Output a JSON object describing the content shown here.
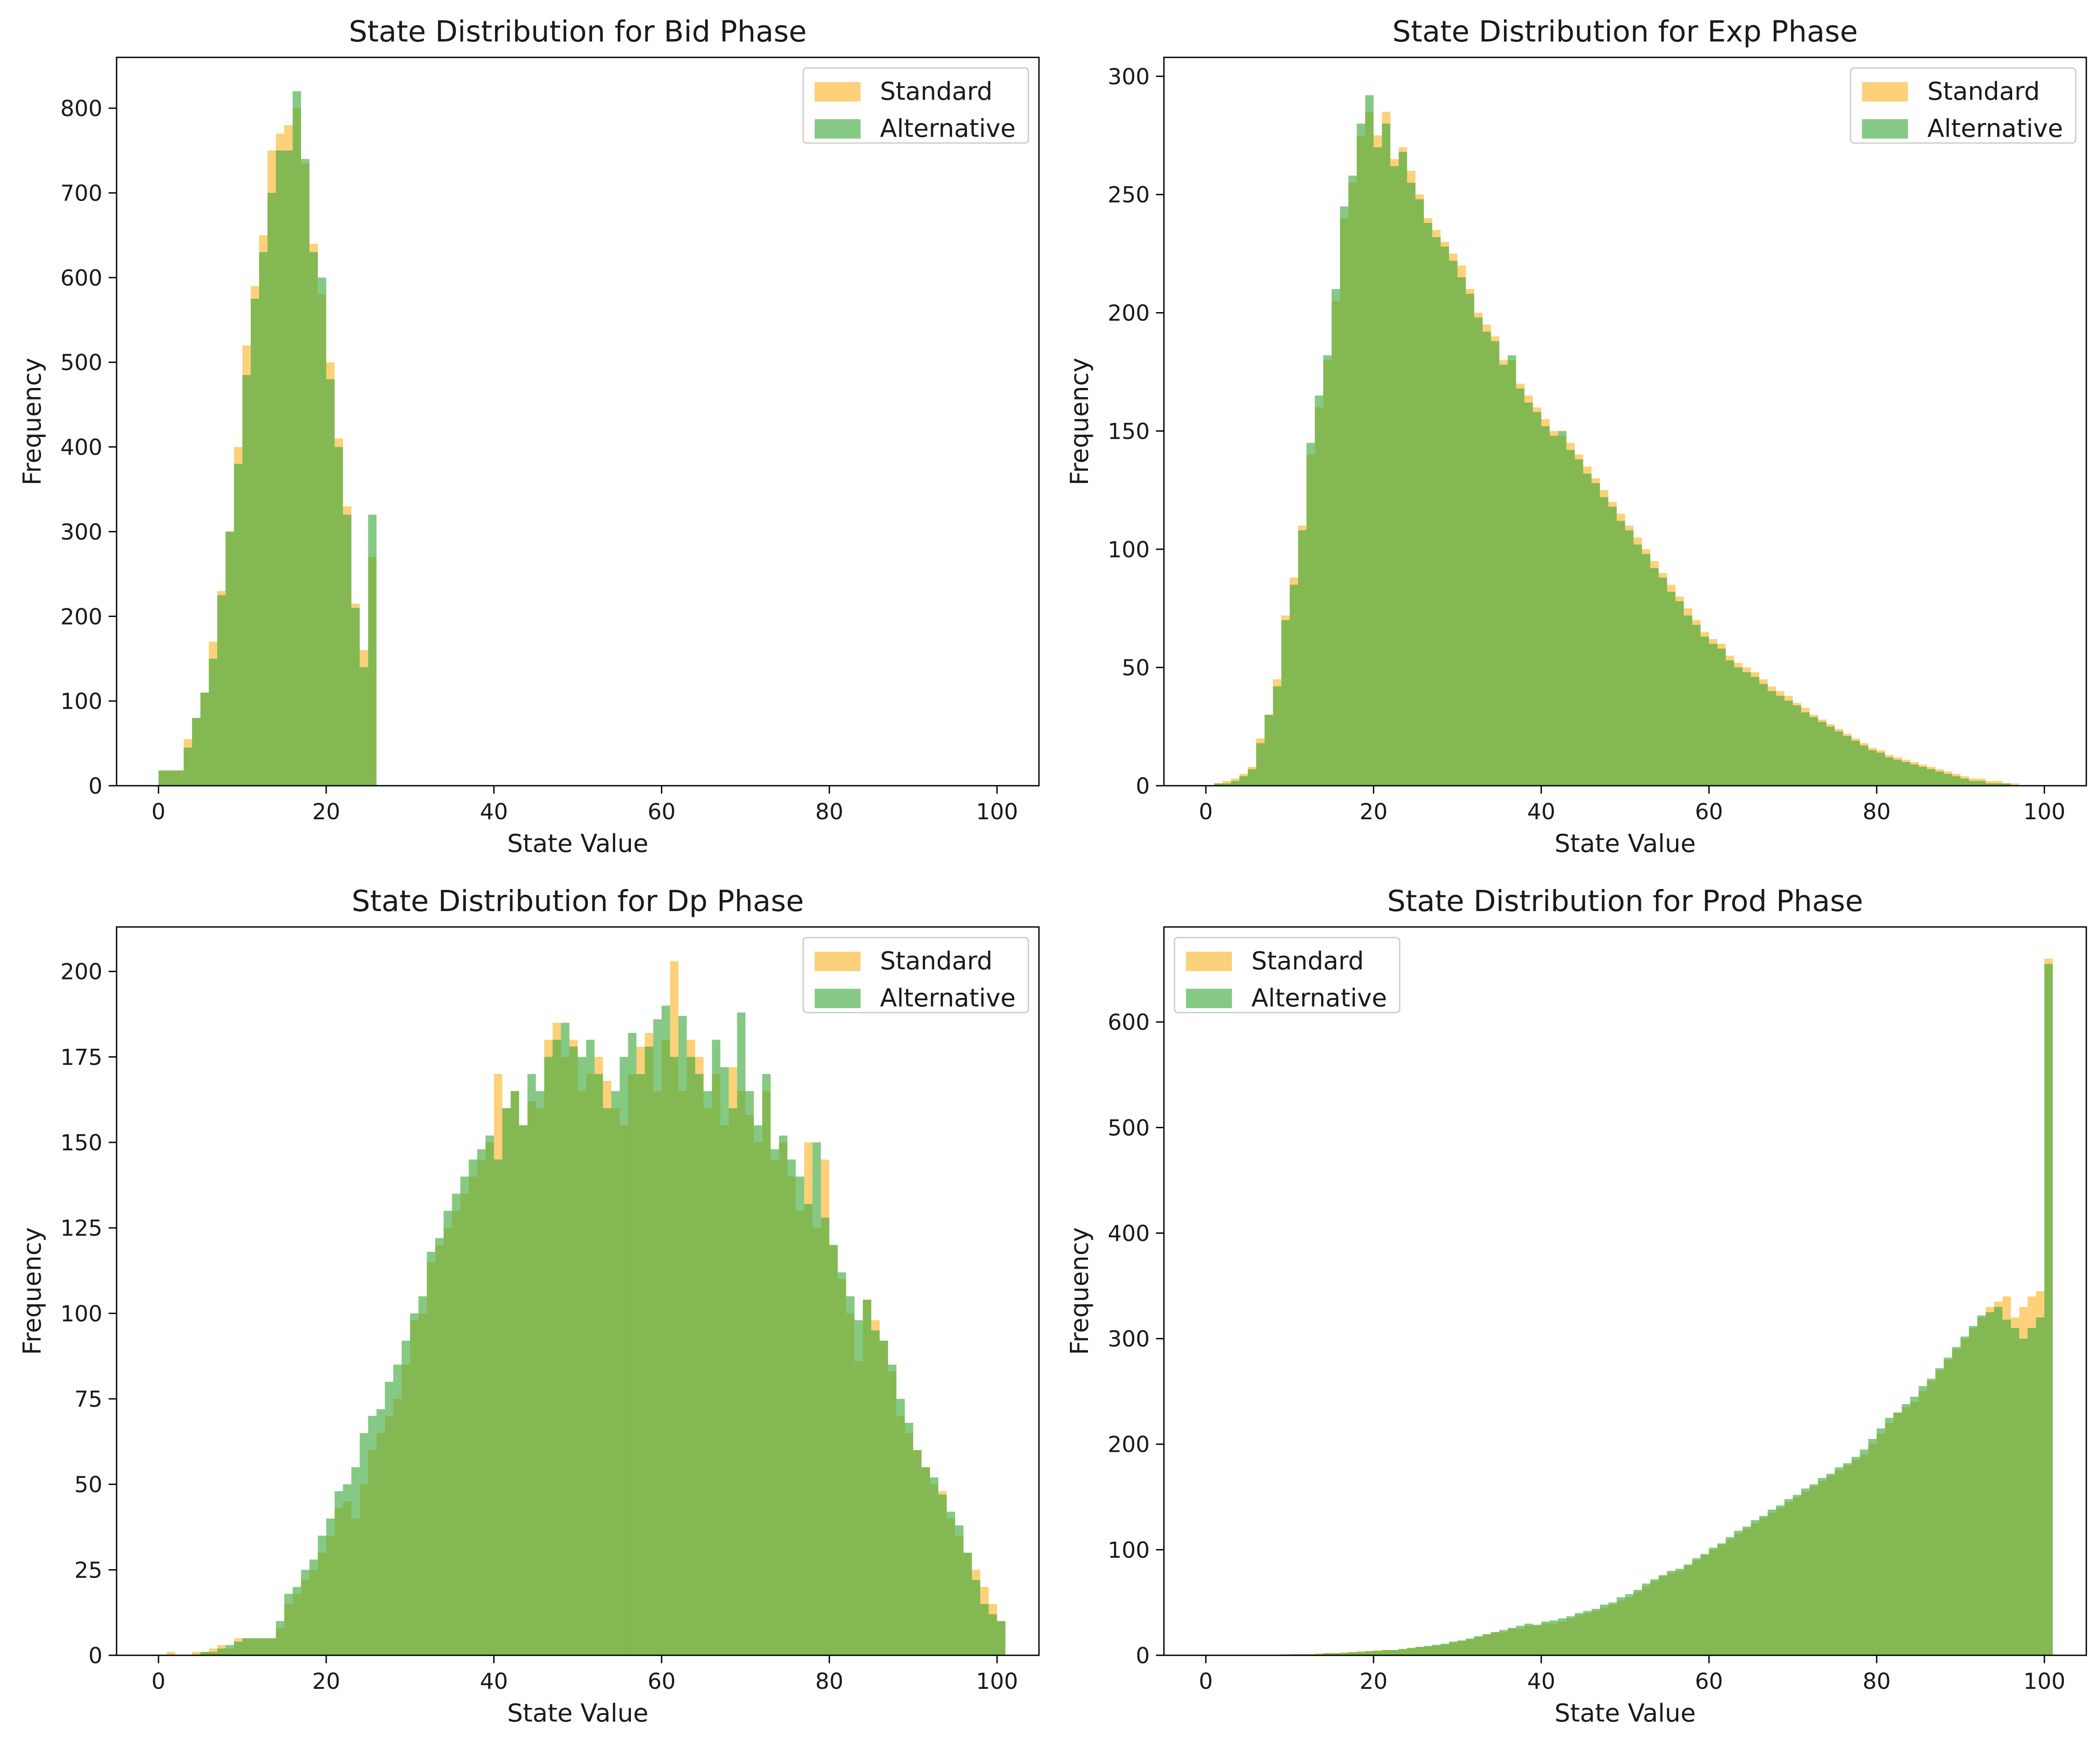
{
  "colors": {
    "standard": "#fbbf45",
    "alternative": "#3aa83a"
  },
  "chart_data": [
    {
      "type": "histogram",
      "title": "State Distribution for Bid Phase",
      "xlabel": "State Value",
      "ylabel": "Frequency",
      "xlim": [
        -5,
        105
      ],
      "ylim": [
        0,
        860
      ],
      "xticks": [
        0,
        20,
        40,
        60,
        80,
        100
      ],
      "yticks": [
        0,
        100,
        200,
        300,
        400,
        500,
        600,
        700,
        800
      ],
      "legend": {
        "position": "top-right"
      },
      "bin_start": 0,
      "bin_width": 1,
      "series": [
        {
          "name": "Standard",
          "color": "#fbbf45",
          "values": [
            18,
            18,
            18,
            55,
            80,
            110,
            170,
            230,
            300,
            400,
            520,
            590,
            650,
            750,
            770,
            780,
            800,
            735,
            640,
            580,
            500,
            410,
            330,
            215,
            160,
            270
          ]
        },
        {
          "name": "Alternative",
          "color": "#3aa83a",
          "values": [
            18,
            18,
            18,
            45,
            80,
            110,
            150,
            225,
            300,
            380,
            485,
            575,
            630,
            700,
            750,
            750,
            820,
            740,
            630,
            600,
            480,
            400,
            320,
            210,
            140,
            320
          ]
        }
      ]
    },
    {
      "type": "histogram",
      "title": "State Distribution for Exp Phase",
      "xlabel": "State Value",
      "ylabel": "Frequency",
      "xlim": [
        -5,
        105
      ],
      "ylim": [
        0,
        308
      ],
      "xticks": [
        0,
        20,
        40,
        60,
        80,
        100
      ],
      "yticks": [
        0,
        50,
        100,
        150,
        200,
        250,
        300
      ],
      "legend": {
        "position": "top-right"
      },
      "bin_start": 0,
      "bin_width": 1,
      "series": [
        {
          "name": "Standard",
          "color": "#fbbf45",
          "values": [
            0,
            1,
            2,
            3,
            5,
            8,
            20,
            30,
            45,
            72,
            88,
            110,
            140,
            160,
            180,
            205,
            240,
            255,
            275,
            285,
            275,
            285,
            265,
            270,
            260,
            250,
            240,
            235,
            230,
            225,
            220,
            210,
            200,
            195,
            190,
            180,
            180,
            170,
            165,
            160,
            155,
            150,
            148,
            145,
            140,
            135,
            130,
            125,
            120,
            115,
            110,
            105,
            100,
            95,
            90,
            85,
            80,
            75,
            70,
            65,
            62,
            60,
            55,
            52,
            50,
            48,
            45,
            42,
            40,
            38,
            35,
            33,
            30,
            28,
            26,
            24,
            22,
            20,
            18,
            16,
            15,
            13,
            12,
            11,
            10,
            9,
            8,
            7,
            6,
            5,
            4,
            3,
            3,
            2,
            2,
            1,
            1,
            0,
            0,
            0
          ]
        },
        {
          "name": "Alternative",
          "color": "#3aa83a",
          "values": [
            0,
            1,
            1,
            2,
            4,
            7,
            18,
            30,
            42,
            70,
            85,
            108,
            145,
            165,
            182,
            210,
            245,
            258,
            280,
            292,
            270,
            280,
            262,
            268,
            255,
            248,
            238,
            232,
            228,
            222,
            215,
            208,
            198,
            192,
            188,
            178,
            182,
            168,
            162,
            158,
            152,
            148,
            150,
            142,
            138,
            132,
            128,
            122,
            118,
            112,
            108,
            102,
            98,
            92,
            88,
            82,
            78,
            72,
            68,
            63,
            60,
            58,
            53,
            50,
            48,
            46,
            43,
            40,
            38,
            36,
            34,
            31,
            29,
            27,
            25,
            23,
            21,
            19,
            17,
            15,
            14,
            12,
            11,
            10,
            9,
            8,
            7,
            6,
            5,
            4,
            3,
            2,
            2,
            1,
            1,
            1,
            0,
            0,
            0,
            0
          ]
        }
      ]
    },
    {
      "type": "histogram",
      "title": "State Distribution for Dp Phase",
      "xlabel": "State Value",
      "ylabel": "Frequency",
      "xlim": [
        -5,
        105
      ],
      "ylim": [
        0,
        213
      ],
      "xticks": [
        0,
        20,
        40,
        60,
        80,
        100
      ],
      "yticks": [
        0,
        25,
        50,
        75,
        100,
        125,
        150,
        175,
        200
      ],
      "legend": {
        "position": "top-right"
      },
      "bin_start": 0,
      "bin_width": 1,
      "series": [
        {
          "name": "Standard",
          "color": "#fbbf45",
          "values": [
            0,
            1,
            0,
            0,
            1,
            1,
            2,
            3,
            2,
            5,
            5,
            5,
            5,
            5,
            8,
            15,
            18,
            22,
            25,
            30,
            35,
            43,
            45,
            40,
            50,
            60,
            65,
            70,
            75,
            85,
            98,
            100,
            115,
            120,
            125,
            130,
            135,
            140,
            145,
            150,
            170,
            160,
            165,
            155,
            162,
            160,
            180,
            185,
            175,
            180,
            165,
            170,
            175,
            168,
            160,
            155,
            170,
            178,
            182,
            165,
            180,
            203,
            165,
            180,
            175,
            160,
            170,
            155,
            172,
            165,
            158,
            150,
            165,
            145,
            150,
            140,
            130,
            150,
            125,
            145,
            120,
            110,
            100,
            86,
            104,
            98,
            92,
            83,
            70,
            65,
            60,
            55,
            50,
            48,
            40,
            35,
            30,
            25,
            20,
            15,
            10
          ]
        },
        {
          "name": "Alternative",
          "color": "#3aa83a",
          "values": [
            0,
            0,
            0,
            0,
            0,
            1,
            1,
            2,
            3,
            4,
            5,
            5,
            5,
            5,
            10,
            18,
            20,
            25,
            28,
            35,
            40,
            48,
            50,
            55,
            65,
            70,
            72,
            80,
            85,
            92,
            100,
            105,
            118,
            122,
            130,
            135,
            140,
            145,
            148,
            152,
            145,
            160,
            165,
            155,
            170,
            165,
            175,
            180,
            185,
            178,
            175,
            180,
            170,
            160,
            165,
            175,
            182,
            170,
            178,
            186,
            190,
            175,
            187,
            175,
            170,
            165,
            180,
            172,
            160,
            188,
            165,
            155,
            170,
            148,
            152,
            145,
            140,
            132,
            150,
            128,
            120,
            112,
            105,
            98,
            104,
            95,
            92,
            85,
            75,
            68,
            60,
            55,
            52,
            47,
            42,
            38,
            30,
            22,
            15,
            12,
            10
          ]
        }
      ]
    },
    {
      "type": "histogram",
      "title": "State Distribution for Prod Phase",
      "xlabel": "State Value",
      "ylabel": "Frequency",
      "xlim": [
        -5,
        105
      ],
      "ylim": [
        0,
        690
      ],
      "xticks": [
        0,
        20,
        40,
        60,
        80,
        100
      ],
      "yticks": [
        0,
        100,
        200,
        300,
        400,
        500,
        600
      ],
      "legend": {
        "position": "top-left"
      },
      "bin_start": 0,
      "bin_width": 1,
      "series": [
        {
          "name": "Standard",
          "color": "#fbbf45",
          "values": [
            0,
            0,
            0,
            0,
            0,
            0,
            0,
            0,
            0,
            1,
            1,
            1,
            1,
            2,
            2,
            2,
            3,
            3,
            4,
            4,
            5,
            5,
            5,
            6,
            7,
            8,
            8,
            9,
            10,
            12,
            14,
            15,
            18,
            20,
            22,
            22,
            25,
            25,
            28,
            28,
            30,
            30,
            32,
            35,
            38,
            40,
            42,
            45,
            48,
            52,
            55,
            60,
            65,
            70,
            75,
            78,
            80,
            85,
            90,
            95,
            100,
            105,
            110,
            115,
            120,
            125,
            130,
            135,
            140,
            145,
            150,
            155,
            160,
            165,
            170,
            175,
            180,
            185,
            190,
            200,
            210,
            220,
            230,
            235,
            240,
            250,
            260,
            270,
            280,
            290,
            300,
            310,
            320,
            330,
            335,
            340,
            320,
            330,
            340,
            345,
            660
          ]
        },
        {
          "name": "Alternative",
          "color": "#3aa83a",
          "values": [
            0,
            0,
            0,
            0,
            0,
            0,
            0,
            0,
            0,
            0,
            1,
            1,
            1,
            1,
            2,
            2,
            2,
            3,
            3,
            4,
            4,
            5,
            5,
            6,
            7,
            8,
            9,
            10,
            11,
            13,
            14,
            16,
            18,
            20,
            22,
            24,
            26,
            28,
            30,
            29,
            32,
            33,
            35,
            37,
            40,
            42,
            44,
            48,
            50,
            55,
            58,
            62,
            68,
            72,
            76,
            80,
            82,
            86,
            92,
            96,
            102,
            106,
            112,
            118,
            122,
            128,
            132,
            138,
            142,
            148,
            152,
            158,
            162,
            168,
            172,
            178,
            182,
            188,
            195,
            205,
            215,
            225,
            230,
            238,
            245,
            255,
            262,
            272,
            282,
            292,
            302,
            312,
            322,
            325,
            330,
            318,
            310,
            300,
            310,
            320,
            655
          ]
        }
      ]
    }
  ]
}
